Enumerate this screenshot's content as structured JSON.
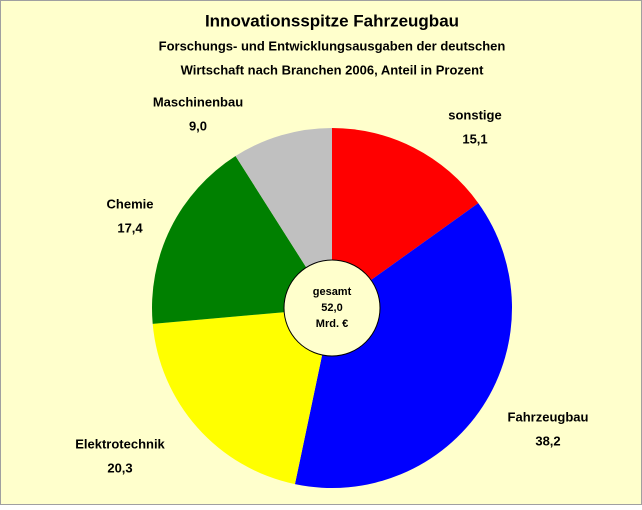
{
  "chart_data": {
    "type": "pie",
    "title": "Innovationsspitze Fahrzeugbau",
    "subtitle": [
      "Forschungs- und Entwicklungsausgaben der deutschen",
      "Wirtschaft nach Branchen 2006, Anteil in Prozent"
    ],
    "categories": [
      "sonstige",
      "Fahrzeugbau",
      "Elektrotechnik",
      "Chemie",
      "Maschinenbau"
    ],
    "values": [
      15.1,
      38.2,
      20.3,
      17.4,
      9.0
    ],
    "value_labels": [
      "15,1",
      "38,2",
      "20,3",
      "17,4",
      "9,0"
    ],
    "colors": [
      "#ff0000",
      "#0000ff",
      "#ffff00",
      "#008000",
      "#c0c0c0"
    ],
    "center_label": [
      "gesamt",
      "52,0",
      "Mrd. €"
    ]
  }
}
